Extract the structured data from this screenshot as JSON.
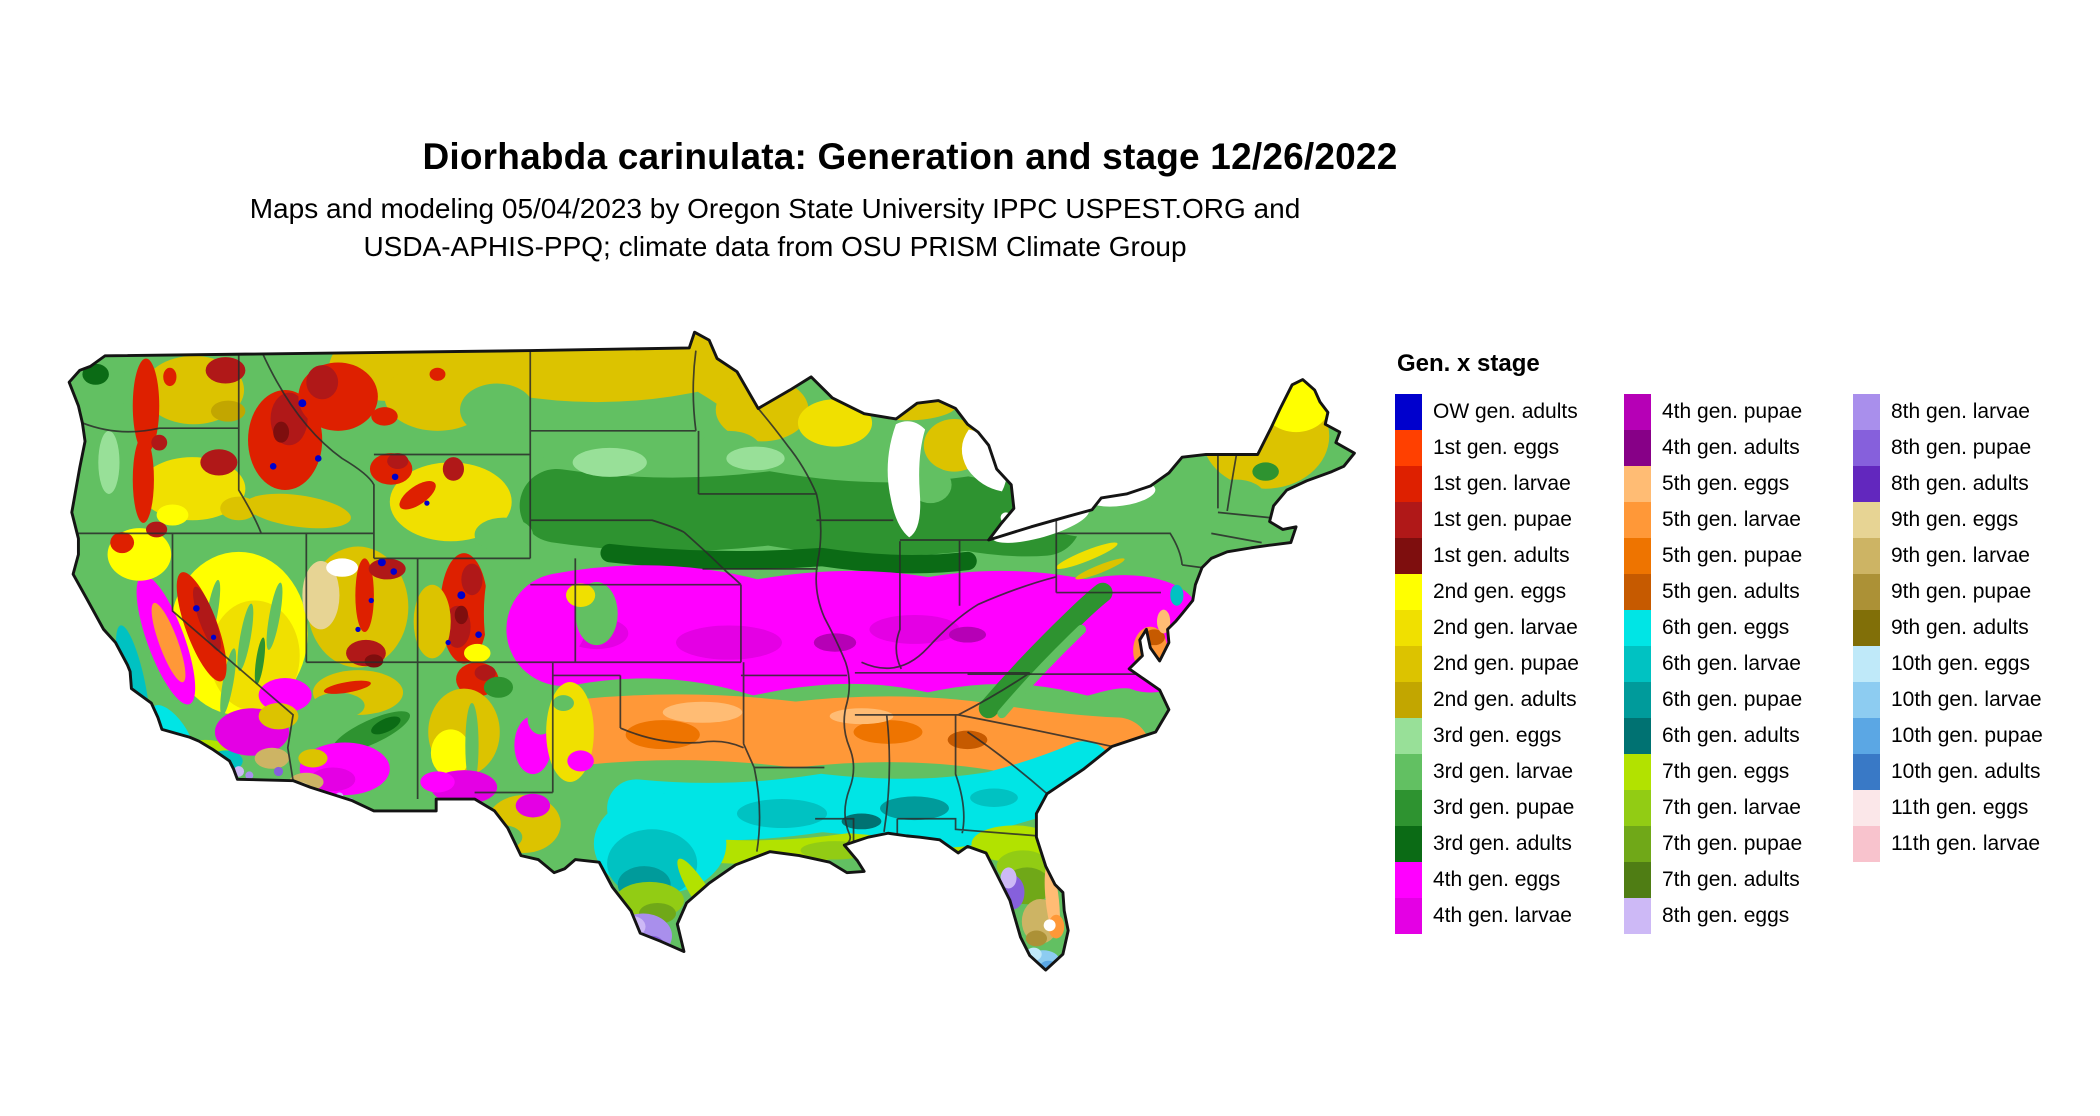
{
  "title": "Diorhabda carinulata: Generation and stage 12/26/2022",
  "subtitle": {
    "line1": "Maps and modeling 05/04/2023 by Oregon State University IPPC USPEST.ORG and",
    "line2": "USDA-APHIS-PPQ; climate data from OSU PRISM Climate Group"
  },
  "legend": {
    "title": "Gen. x stage",
    "columns": [
      [
        {
          "key": "ow_adults",
          "label": "OW gen. adults"
        },
        {
          "key": "g1_eggs",
          "label": "1st gen. eggs"
        },
        {
          "key": "g1_larvae",
          "label": "1st gen. larvae"
        },
        {
          "key": "g1_pupae",
          "label": "1st gen. pupae"
        },
        {
          "key": "g1_adults",
          "label": "1st gen. adults"
        },
        {
          "key": "g2_eggs",
          "label": "2nd gen. eggs"
        },
        {
          "key": "g2_larvae",
          "label": "2nd gen. larvae"
        },
        {
          "key": "g2_pupae",
          "label": "2nd gen. pupae"
        },
        {
          "key": "g2_adults",
          "label": "2nd gen. adults"
        },
        {
          "key": "g3_eggs",
          "label": "3rd gen. eggs"
        },
        {
          "key": "g3_larvae",
          "label": "3rd gen. larvae"
        },
        {
          "key": "g3_pupae",
          "label": "3rd gen. pupae"
        },
        {
          "key": "g3_adults",
          "label": "3rd gen. adults"
        },
        {
          "key": "g4_eggs",
          "label": "4th gen. eggs"
        },
        {
          "key": "g4_larvae",
          "label": "4th gen. larvae"
        }
      ],
      [
        {
          "key": "g4_pupae",
          "label": "4th gen. pupae"
        },
        {
          "key": "g4_adults",
          "label": "4th gen. adults"
        },
        {
          "key": "g5_eggs",
          "label": "5th gen. eggs"
        },
        {
          "key": "g5_larvae",
          "label": "5th gen. larvae"
        },
        {
          "key": "g5_pupae",
          "label": "5th gen. pupae"
        },
        {
          "key": "g5_adults",
          "label": "5th gen. adults"
        },
        {
          "key": "g6_eggs",
          "label": "6th gen. eggs"
        },
        {
          "key": "g6_larvae",
          "label": "6th gen. larvae"
        },
        {
          "key": "g6_pupae",
          "label": "6th gen. pupae"
        },
        {
          "key": "g6_adults",
          "label": "6th gen. adults"
        },
        {
          "key": "g7_eggs",
          "label": "7th gen. eggs"
        },
        {
          "key": "g7_larvae",
          "label": "7th gen. larvae"
        },
        {
          "key": "g7_pupae",
          "label": "7th gen. pupae"
        },
        {
          "key": "g7_adults",
          "label": "7th gen. adults"
        },
        {
          "key": "g8_eggs",
          "label": "8th gen. eggs"
        }
      ],
      [
        {
          "key": "g8_larvae",
          "label": "8th gen. larvae"
        },
        {
          "key": "g8_pupae",
          "label": "8th gen. pupae"
        },
        {
          "key": "g8_adults",
          "label": "8th gen. adults"
        },
        {
          "key": "g9_eggs",
          "label": "9th gen. eggs"
        },
        {
          "key": "g9_larvae",
          "label": "9th gen. larvae"
        },
        {
          "key": "g9_pupae",
          "label": "9th gen. pupae"
        },
        {
          "key": "g9_adults",
          "label": "9th gen. adults"
        },
        {
          "key": "g10_eggs",
          "label": "10th gen. eggs"
        },
        {
          "key": "g10_larvae",
          "label": "10th gen. larvae"
        },
        {
          "key": "g10_pupae",
          "label": "10th gen. pupae"
        },
        {
          "key": "g10_adults",
          "label": "10th gen. adults"
        },
        {
          "key": "g11_eggs",
          "label": "11th gen. eggs"
        },
        {
          "key": "g11_larvae",
          "label": "11th gen. larvae"
        }
      ]
    ]
  },
  "palette": {
    "ow_adults": "#0000CD",
    "g1_eggs": "#FF4000",
    "g1_larvae": "#DE2000",
    "g1_pupae": "#B01818",
    "g1_adults": "#7E0E0E",
    "g2_eggs": "#FFFF00",
    "g2_larvae": "#F0E000",
    "g2_pupae": "#DCC300",
    "g2_adults": "#C2A600",
    "g3_eggs": "#98E098",
    "g3_larvae": "#62C062",
    "g3_pupae": "#2E9330",
    "g3_adults": "#0B6B15",
    "g4_eggs": "#FF00FF",
    "g4_larvae": "#E400E4",
    "g4_pupae": "#B600B6",
    "g4_adults": "#870087",
    "g5_eggs": "#FFBC74",
    "g5_larvae": "#FF9838",
    "g5_pupae": "#EE7400",
    "g5_adults": "#C65A00",
    "g6_eggs": "#00E5E5",
    "g6_larvae": "#00C2C2",
    "g6_pupae": "#009B9B",
    "g6_adults": "#007272",
    "g7_eggs": "#B2E200",
    "g7_larvae": "#92CC14",
    "g7_pupae": "#70A818",
    "g7_adults": "#4F7D14",
    "g8_eggs": "#CDB9F6",
    "g8_larvae": "#A98FEC",
    "g8_pupae": "#8660DC",
    "g8_adults": "#6227BE",
    "g9_eggs": "#E7D494",
    "g9_larvae": "#CDB464",
    "g9_pupae": "#AC9136",
    "g9_adults": "#816F08",
    "g10_eggs": "#BFE9F9",
    "g10_larvae": "#8DCCF1",
    "g10_pupae": "#5BA7E4",
    "g10_adults": "#3979C6",
    "g11_eggs": "#FBE7E9",
    "g11_larvae": "#F8C3CD",
    "water": "#FFFFFF",
    "border": "#2A2A2A",
    "outline": "#141414"
  }
}
